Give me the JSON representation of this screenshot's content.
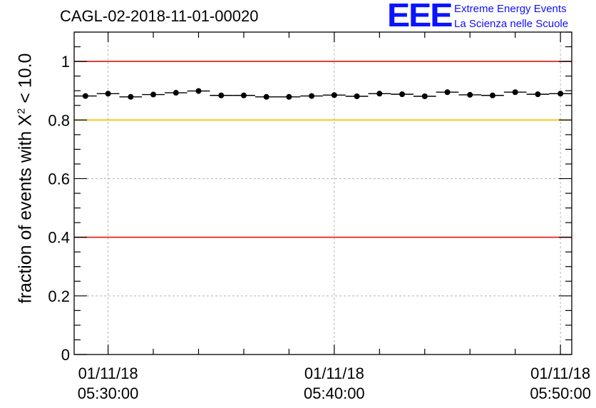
{
  "chart_data": {
    "type": "scatter",
    "title": "CAGL-02-2018-11-01-00020",
    "ylabel": "fraction of events with X² < 10.0",
    "ylabel_parts": {
      "prefix": "fraction of events with X",
      "sup": "2",
      "suffix": " < 10.0"
    },
    "xlabel": "",
    "ylim": [
      0,
      1.1
    ],
    "xlim": [
      "05:28:30",
      "05:50:30"
    ],
    "grid": true,
    "x_tick_labels": [
      {
        "time": "05:30:00",
        "date": "01/11/18"
      },
      {
        "time": "05:40:00",
        "date": "01/11/18"
      },
      {
        "time": "05:50:00",
        "date": "01/11/18"
      }
    ],
    "y_tick_labels": [
      "0",
      "0.2",
      "0.4",
      "0.6",
      "0.8",
      "1"
    ],
    "y_ticks": [
      0,
      0.2,
      0.4,
      0.6,
      0.8,
      1.0
    ],
    "reference_lines": [
      {
        "y": 1.0,
        "color": "#e8231e"
      },
      {
        "y": 0.8,
        "color": "#ffc000"
      },
      {
        "y": 0.4,
        "color": "#e8231e"
      }
    ],
    "bin_width_seconds": 60,
    "series": [
      {
        "x": [
          "05:29:00",
          "05:30:00",
          "05:31:00",
          "05:32:00",
          "05:33:00",
          "05:34:00",
          "05:35:00",
          "05:36:00",
          "05:37:00",
          "05:38:00",
          "05:39:00",
          "05:40:00",
          "05:41:00",
          "05:42:00",
          "05:43:00",
          "05:44:00",
          "05:45:00",
          "05:46:00",
          "05:47:00",
          "05:48:00",
          "05:49:00",
          "05:50:00"
        ],
        "values": [
          0.882,
          0.89,
          0.879,
          0.887,
          0.893,
          0.899,
          0.884,
          0.884,
          0.879,
          0.879,
          0.882,
          0.885,
          0.881,
          0.89,
          0.888,
          0.881,
          0.895,
          0.886,
          0.884,
          0.895,
          0.888,
          0.89
        ]
      }
    ]
  },
  "logo": {
    "mark": "EEE",
    "line1": "Extreme Energy Events",
    "line2": "La Scienza nelle Scuole"
  },
  "colors": {
    "logo": "#0a14ff",
    "grid": "#b4b4b4",
    "marker": "#000000"
  }
}
